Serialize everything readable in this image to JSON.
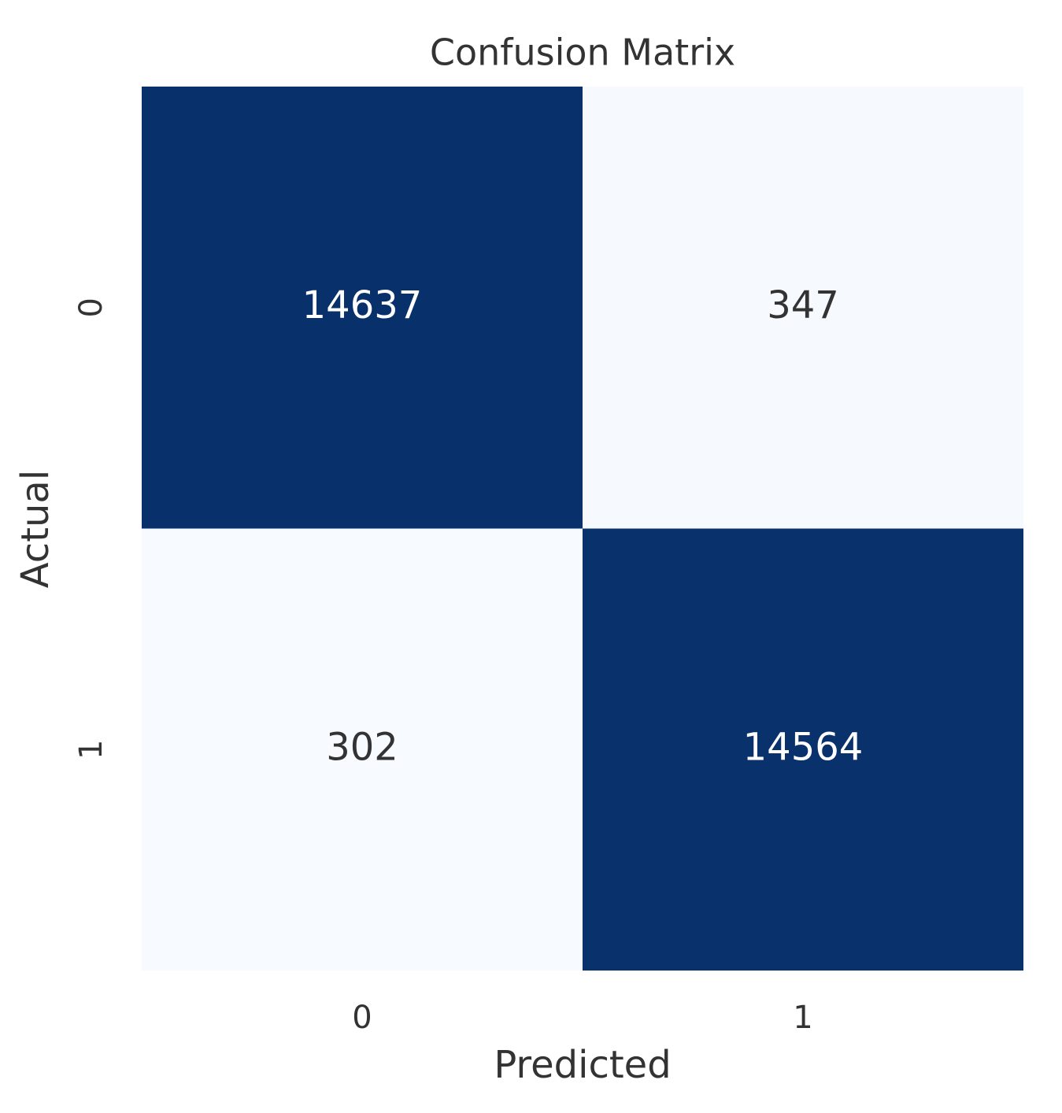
{
  "chart_data": {
    "type": "heatmap",
    "title": "Confusion Matrix",
    "x_label": "Predicted",
    "y_label": "Actual",
    "x_categories": [
      "0",
      "1"
    ],
    "y_categories": [
      "0",
      "1"
    ],
    "values": [
      [
        14637,
        347
      ],
      [
        302,
        14564
      ]
    ],
    "colors": [
      "#f7fbff",
      "#08306b"
    ]
  }
}
